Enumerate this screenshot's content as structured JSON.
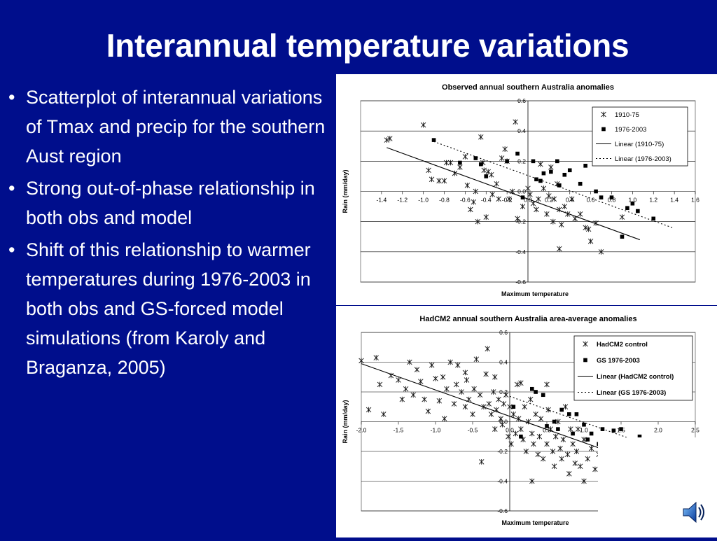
{
  "slide": {
    "title": "Interannual temperature variations",
    "bullets": [
      "Scatterplot of interannual variations of Tmax and precip for the southern Aust region",
      "Strong out-of-phase relationship in both obs and model",
      "Shift of this relationship to warmer temperatures during 1976-2003 in both obs and GS-forced model simulations (from Karoly and Braganza, 2005)"
    ],
    "bullet_symbol": "•",
    "colors": {
      "background": "#000e8c",
      "text": "#ffffff"
    },
    "icons": [
      "speaker-icon"
    ]
  },
  "chart_data": [
    {
      "type": "scatter",
      "title": "Observed annual southern Australia anomalies",
      "xlabel": "Maximum temperature",
      "ylabel": "Rain (mm/day)",
      "xlim": [
        -1.6,
        1.6
      ],
      "ylim": [
        -0.6,
        0.6
      ],
      "xticks": [
        "-1.4",
        "-1.2",
        "-1.0",
        "-0.8",
        "-0.6",
        "-0.4",
        "-0.2",
        "0.0",
        "0.2",
        "0.4",
        "0.6",
        "0.8",
        "1.0",
        "1.2",
        "1.4",
        "1.6"
      ],
      "yticks": [
        "0.6",
        "0.4",
        "0.2",
        "0.0",
        "-0.2",
        "-0.4",
        "-0.6"
      ],
      "grid": "horizontal",
      "legend_position": "top-right",
      "series": [
        {
          "name": "1910-75",
          "marker": "asterisk",
          "points": [
            [
              -1.35,
              0.34
            ],
            [
              -1.32,
              0.35
            ],
            [
              -1.0,
              0.44
            ],
            [
              -0.95,
              0.14
            ],
            [
              -0.92,
              0.08
            ],
            [
              -0.85,
              0.07
            ],
            [
              -0.8,
              0.07
            ],
            [
              -0.78,
              0.19
            ],
            [
              -0.74,
              0.19
            ],
            [
              -0.7,
              0.12
            ],
            [
              -0.65,
              0.16
            ],
            [
              -0.6,
              0.23
            ],
            [
              -0.58,
              0.04
            ],
            [
              -0.55,
              -0.12
            ],
            [
              -0.52,
              -0.07
            ],
            [
              -0.5,
              0.0
            ],
            [
              -0.48,
              -0.2
            ],
            [
              -0.45,
              0.36
            ],
            [
              -0.43,
              0.19
            ],
            [
              -0.42,
              0.14
            ],
            [
              -0.4,
              -0.17
            ],
            [
              -0.38,
              0.13
            ],
            [
              -0.35,
              0.11
            ],
            [
              -0.34,
              -0.02
            ],
            [
              -0.3,
              0.05
            ],
            [
              -0.28,
              -0.05
            ],
            [
              -0.25,
              0.22
            ],
            [
              -0.22,
              0.28
            ],
            [
              -0.2,
              0.2
            ],
            [
              -0.18,
              -0.05
            ],
            [
              -0.15,
              0.0
            ],
            [
              -0.12,
              0.46
            ],
            [
              -0.1,
              -0.18
            ],
            [
              -0.05,
              -0.1
            ],
            [
              0.0,
              0.02
            ],
            [
              0.02,
              -0.02
            ],
            [
              0.05,
              -0.08
            ],
            [
              0.08,
              -0.12
            ],
            [
              0.1,
              -0.05
            ],
            [
              0.12,
              0.18
            ],
            [
              0.15,
              0.02
            ],
            [
              0.18,
              -0.15
            ],
            [
              0.2,
              -0.03
            ],
            [
              0.22,
              0.16
            ],
            [
              0.24,
              -0.2
            ],
            [
              0.25,
              -0.05
            ],
            [
              0.28,
              0.05
            ],
            [
              0.3,
              -0.12
            ],
            [
              0.3,
              -0.38
            ],
            [
              0.32,
              -0.22
            ],
            [
              0.35,
              -0.1
            ],
            [
              0.38,
              -0.15
            ],
            [
              0.42,
              -0.05
            ],
            [
              0.45,
              -0.18
            ],
            [
              0.5,
              -0.15
            ],
            [
              0.55,
              -0.24
            ],
            [
              0.58,
              -0.25
            ],
            [
              0.6,
              -0.33
            ],
            [
              0.65,
              -0.21
            ],
            [
              0.7,
              -0.4
            ],
            [
              0.9,
              -0.17
            ]
          ]
        },
        {
          "name": "1976-2003",
          "marker": "square",
          "points": [
            [
              -0.9,
              0.34
            ],
            [
              -0.65,
              0.19
            ],
            [
              -0.5,
              0.22
            ],
            [
              -0.45,
              0.18
            ],
            [
              -0.4,
              0.1
            ],
            [
              -0.2,
              0.2
            ],
            [
              -0.1,
              0.25
            ],
            [
              -0.05,
              -0.04
            ],
            [
              0.05,
              0.2
            ],
            [
              0.08,
              0.08
            ],
            [
              0.12,
              0.07
            ],
            [
              0.15,
              0.12
            ],
            [
              0.22,
              0.13
            ],
            [
              0.28,
              0.2
            ],
            [
              0.3,
              0.04
            ],
            [
              0.35,
              0.11
            ],
            [
              0.4,
              0.14
            ],
            [
              0.5,
              0.05
            ],
            [
              0.55,
              0.17
            ],
            [
              0.65,
              0.0
            ],
            [
              0.7,
              -0.04
            ],
            [
              0.8,
              -0.04
            ],
            [
              0.95,
              -0.11
            ],
            [
              0.9,
              -0.3
            ],
            [
              1.0,
              -0.08
            ],
            [
              1.05,
              -0.13
            ],
            [
              1.2,
              -0.18
            ]
          ]
        }
      ],
      "trend_lines": [
        {
          "name": "Linear (1910-75)",
          "from": [
            -1.35,
            0.29
          ],
          "to": [
            1.07,
            -0.32
          ],
          "style": "solid"
        },
        {
          "name": "Linear (1976-2003)",
          "from": [
            -0.9,
            0.33
          ],
          "to": [
            1.38,
            -0.24
          ],
          "style": "dashed"
        }
      ]
    },
    {
      "type": "scatter",
      "title": "HadCM2 annual southern Australia area-average anomalies",
      "xlabel": "Maximum temperature",
      "ylabel": "Rain (mm/day)",
      "xlim": [
        -2.0,
        2.5
      ],
      "ylim": [
        -0.6,
        0.6
      ],
      "xticks": [
        "-2.0",
        "-1.5",
        "-1.0",
        "-0.5",
        "0.0",
        "0.5",
        "1.0",
        "1.5",
        "2.0",
        "2.5"
      ],
      "yticks": [
        "0.6",
        "0.4",
        "0.2",
        "0.0",
        "-0.2",
        "-0.4",
        "-0.6"
      ],
      "grid": "horizontal",
      "legend_position": "top-right",
      "series": [
        {
          "name": "HadCM2 control",
          "marker": "asterisk",
          "points": [
            [
              -2.0,
              0.41
            ],
            [
              -1.9,
              0.08
            ],
            [
              -1.8,
              0.43
            ],
            [
              -1.75,
              0.25
            ],
            [
              -1.6,
              0.31
            ],
            [
              -1.5,
              0.28
            ],
            [
              -1.45,
              0.15
            ],
            [
              -1.4,
              0.22
            ],
            [
              -1.35,
              0.4
            ],
            [
              -1.3,
              0.18
            ],
            [
              -1.25,
              0.35
            ],
            [
              -1.2,
              0.27
            ],
            [
              -1.15,
              0.15
            ],
            [
              -1.1,
              0.07
            ],
            [
              -1.05,
              0.38
            ],
            [
              -1.0,
              0.29
            ],
            [
              -0.95,
              0.14
            ],
            [
              -0.9,
              0.3
            ],
            [
              -0.88,
              0.02
            ],
            [
              -0.85,
              0.22
            ],
            [
              -0.8,
              0.4
            ],
            [
              -0.75,
              0.12
            ],
            [
              -0.72,
              0.25
            ],
            [
              -0.7,
              0.38
            ],
            [
              -0.65,
              0.2
            ],
            [
              -0.6,
              0.1
            ],
            [
              -0.58,
              0.28
            ],
            [
              -0.55,
              0.15
            ],
            [
              -0.5,
              0.05
            ],
            [
              -0.48,
              0.22
            ],
            [
              -0.45,
              0.42
            ],
            [
              -0.4,
              0.18
            ],
            [
              -0.38,
              -0.27
            ],
            [
              -0.35,
              0.1
            ],
            [
              -0.32,
              0.32
            ],
            [
              -0.3,
              0.49
            ],
            [
              -0.28,
              0.12
            ],
            [
              -0.25,
              0.05
            ],
            [
              -0.22,
              0.2
            ],
            [
              -0.2,
              -0.05
            ],
            [
              -0.18,
              0.08
            ],
            [
              -0.15,
              0.15
            ],
            [
              -0.12,
              0.02
            ],
            [
              -0.1,
              -0.02
            ],
            [
              -0.08,
              0.12
            ],
            [
              -0.05,
              0.18
            ],
            [
              -0.02,
              -0.1
            ],
            [
              0.0,
              0.1
            ],
            [
              0.02,
              -0.15
            ],
            [
              0.05,
              0.05
            ],
            [
              0.08,
              -0.08
            ],
            [
              0.1,
              0.25
            ],
            [
              0.12,
              0.02
            ],
            [
              0.15,
              -0.05
            ],
            [
              0.18,
              -0.12
            ],
            [
              0.2,
              0.1
            ],
            [
              0.22,
              -0.2
            ],
            [
              0.25,
              0.0
            ],
            [
              0.28,
              0.15
            ],
            [
              0.3,
              -0.08
            ],
            [
              0.32,
              -0.15
            ],
            [
              0.35,
              0.05
            ],
            [
              0.38,
              -0.22
            ],
            [
              0.4,
              -0.1
            ],
            [
              0.42,
              0.02
            ],
            [
              0.45,
              -0.25
            ],
            [
              0.5,
              -0.15
            ],
            [
              0.52,
              0.08
            ],
            [
              0.55,
              -0.05
            ],
            [
              0.58,
              -0.2
            ],
            [
              0.6,
              -0.3
            ],
            [
              0.62,
              -0.1
            ],
            [
              0.65,
              0.0
            ],
            [
              0.68,
              -0.18
            ],
            [
              0.7,
              -0.25
            ],
            [
              0.72,
              -0.12
            ],
            [
              0.75,
              0.1
            ],
            [
              0.78,
              -0.22
            ],
            [
              0.8,
              -0.35
            ],
            [
              0.82,
              -0.05
            ],
            [
              0.85,
              -0.15
            ],
            [
              0.88,
              -0.28
            ],
            [
              0.9,
              -0.2
            ],
            [
              0.92,
              -0.05
            ],
            [
              0.95,
              -0.3
            ],
            [
              1.0,
              -0.12
            ],
            [
              1.05,
              -0.25
            ],
            [
              1.1,
              -0.18
            ],
            [
              1.15,
              -0.32
            ],
            [
              1.2,
              -0.22
            ],
            [
              1.25,
              -0.35
            ],
            [
              1.3,
              -0.28
            ],
            [
              1.35,
              -0.15
            ],
            [
              1.4,
              -0.25
            ],
            [
              1.45,
              -0.32
            ],
            [
              1.5,
              -0.18
            ],
            [
              1.6,
              -0.22
            ],
            [
              1.7,
              -0.35
            ],
            [
              1.75,
              -0.15
            ],
            [
              1.85,
              -0.2
            ],
            [
              1.95,
              -0.48
            ],
            [
              0.15,
              0.26
            ],
            [
              -0.6,
              0.33
            ],
            [
              0.3,
              -0.4
            ],
            [
              1.0,
              -0.4
            ],
            [
              -1.7,
              0.05
            ],
            [
              -0.2,
              0.3
            ],
            [
              0.5,
              0.25
            ]
          ]
        },
        {
          "name": "GS 1976-2003",
          "marker": "square",
          "points": [
            [
              0.05,
              0.1
            ],
            [
              0.15,
              -0.1
            ],
            [
              0.3,
              0.22
            ],
            [
              0.35,
              0.2
            ],
            [
              0.45,
              0.18
            ],
            [
              0.5,
              -0.03
            ],
            [
              0.6,
              0.0
            ],
            [
              0.65,
              -0.05
            ],
            [
              0.7,
              0.08
            ],
            [
              0.8,
              0.05
            ],
            [
              0.85,
              -0.08
            ],
            [
              0.9,
              0.05
            ],
            [
              1.0,
              -0.02
            ],
            [
              1.05,
              -0.12
            ],
            [
              1.1,
              -0.08
            ],
            [
              1.2,
              -0.15
            ],
            [
              1.25,
              -0.05
            ],
            [
              1.3,
              -0.18
            ],
            [
              1.4,
              -0.06
            ],
            [
              1.45,
              -0.15
            ],
            [
              1.5,
              -0.05
            ],
            [
              1.55,
              -0.2
            ],
            [
              1.6,
              -0.12
            ],
            [
              1.7,
              -0.2
            ],
            [
              1.75,
              -0.1
            ],
            [
              2.4,
              -0.27
            ]
          ]
        }
      ],
      "trend_lines": [
        {
          "name": "Linear (HadCM2 control)",
          "from": [
            -2.0,
            0.39
          ],
          "to": [
            1.9,
            -0.3
          ],
          "style": "solid"
        },
        {
          "name": "Linear (GS 1976-2003)",
          "from": [
            0.0,
            0.17
          ],
          "to": [
            2.4,
            -0.25
          ],
          "style": "dashed"
        }
      ]
    }
  ]
}
